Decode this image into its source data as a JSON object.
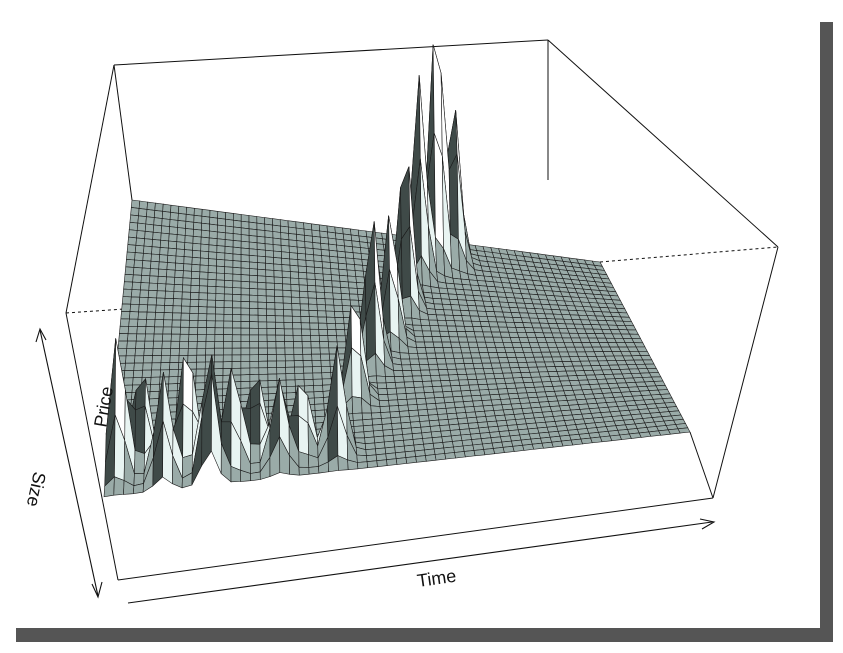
{
  "chart_data": {
    "type": "surface",
    "title": "",
    "axes": {
      "x": {
        "label": "Time",
        "arrow": true,
        "ticks": false
      },
      "y": {
        "label": "Price",
        "arrow": false,
        "ticks": false
      },
      "z": {
        "label": "Size",
        "arrow": true,
        "ticks": false
      }
    },
    "grid": false,
    "box": true,
    "style": {
      "facet_color": "#9aaba8",
      "facet_highlight": "#e8f4f2",
      "facet_shadow": "#3f4a48",
      "line_color": "#1a1a1a",
      "drop_shadow": "#555555"
    },
    "peaks": [
      {
        "time_frac": 0.02,
        "price_frac": 0.08,
        "size_frac": 0.55
      },
      {
        "time_frac": 0.06,
        "price_frac": 0.12,
        "size_frac": 0.35
      },
      {
        "time_frac": 0.1,
        "price_frac": 0.05,
        "size_frac": 0.4
      },
      {
        "time_frac": 0.14,
        "price_frac": 0.1,
        "size_frac": 0.45
      },
      {
        "time_frac": 0.18,
        "price_frac": 0.04,
        "size_frac": 0.5
      },
      {
        "time_frac": 0.22,
        "price_frac": 0.08,
        "size_frac": 0.38
      },
      {
        "time_frac": 0.26,
        "price_frac": 0.12,
        "size_frac": 0.3
      },
      {
        "time_frac": 0.3,
        "price_frac": 0.06,
        "size_frac": 0.36
      },
      {
        "time_frac": 0.34,
        "price_frac": 0.1,
        "size_frac": 0.28
      },
      {
        "time_frac": 0.4,
        "price_frac": 0.08,
        "size_frac": 0.42
      },
      {
        "time_frac": 0.44,
        "price_frac": 0.3,
        "size_frac": 0.4
      },
      {
        "time_frac": 0.48,
        "price_frac": 0.45,
        "size_frac": 0.55
      },
      {
        "time_frac": 0.52,
        "price_frac": 0.55,
        "size_frac": 0.48
      },
      {
        "time_frac": 0.56,
        "price_frac": 0.7,
        "size_frac": 0.6
      },
      {
        "time_frac": 0.6,
        "price_frac": 0.85,
        "size_frac": 0.75
      },
      {
        "time_frac": 0.64,
        "price_frac": 0.9,
        "size_frac": 0.95
      },
      {
        "time_frac": 0.68,
        "price_frac": 0.92,
        "size_frac": 0.6
      }
    ]
  }
}
